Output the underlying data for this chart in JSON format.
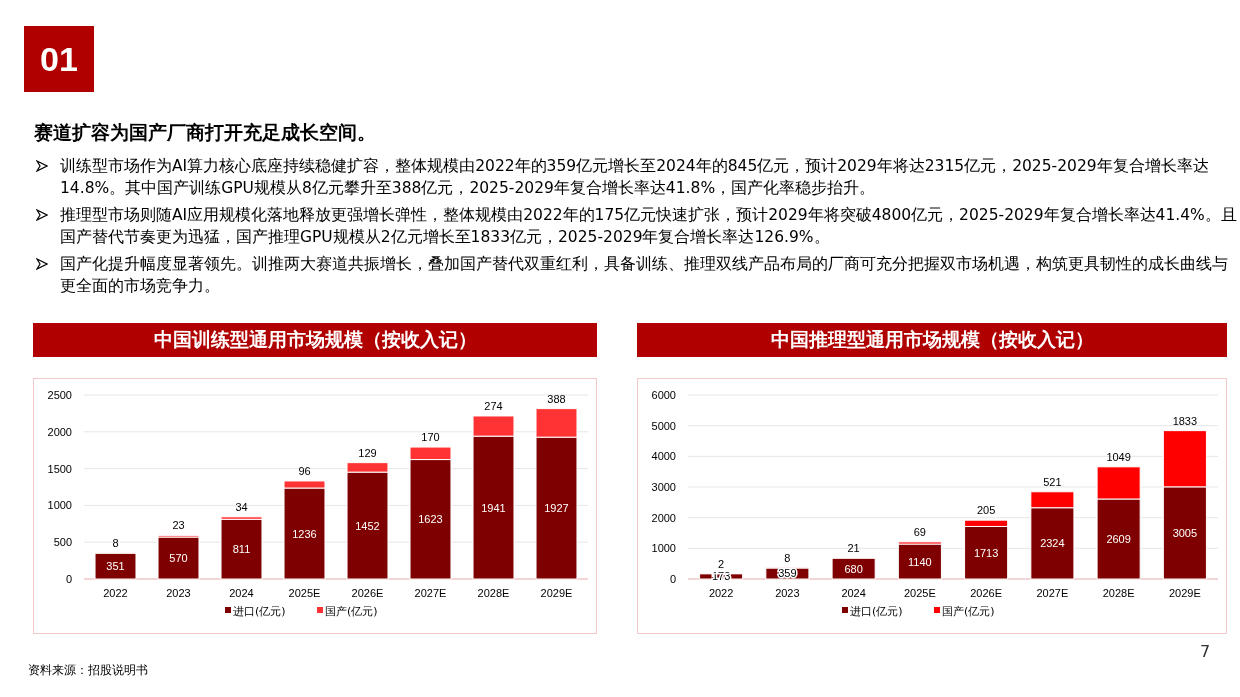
{
  "chart_data": [
    {
      "type": "other",
      "title": "赛道扩容为国产厂商打开充足成长空间。",
      "annotations": [
        "01",
        "训练型市场作为AI算力核心底座持续稳健扩容，整体规模由2022年的359亿元增长至2024年的845亿元，预计2029年将达2315亿元，2025-2029年复合增长率达14.8%。其中国产训练GPU规模从8亿元攀升至388亿元，2025-2029年复合增长率达41.8%，国产化率稳步抬升。",
        "推理型市场则随AI应用规模化落地释放更强增长弹性，整体规模由2022年的175亿元快速扩张，预计2029年将突破4800亿元，2025-2029年复合增长率达41.4%。且国产替代节奏更为迅猛，国产推理GPU规模从2亿元增长至1833亿元，2025-2029年复合增长率达126.9%。",
        "国产化提升幅度显著领先。训推两大赛道共振增长，叠加国产替代双重红利，具备训练、推理双线产品布局的厂商可充分把握双市场机遇，构筑更具韧性的成长曲线与更全面的市场竞争力。",
        "资料来源：招股说明书",
        "7"
      ]
    },
    {
      "type": "bar",
      "title": "中国训练型通用市场规模（按收入记）",
      "stacked": true,
      "data_labels": true,
      "grid": "y",
      "legend": "bottom",
      "categories": [
        "2022",
        "2023",
        "2024",
        "2025E",
        "2026E",
        "2027E",
        "2028E",
        "2029E"
      ],
      "ylim": [
        0,
        2500
      ],
      "yticks": [
        0,
        500,
        1000,
        1500,
        2000,
        2500
      ],
      "series": [
        {
          "name": "进口(亿元)",
          "color": "#7f0000",
          "values": [
            351,
            570,
            811,
            1236,
            1452,
            1623,
            1941,
            1927
          ]
        },
        {
          "name": "国产(亿元)",
          "color": "#ff3333",
          "values": [
            8,
            23,
            34,
            96,
            129,
            170,
            274,
            388
          ]
        }
      ]
    },
    {
      "type": "bar",
      "title": "中国推理型通用市场规模（按收入记）",
      "stacked": true,
      "data_labels": true,
      "grid": "y",
      "legend": "bottom",
      "categories": [
        "2022",
        "2023",
        "2024",
        "2025E",
        "2026E",
        "2027E",
        "2028E",
        "2029E"
      ],
      "ylim": [
        0,
        6000
      ],
      "yticks": [
        0,
        1000,
        2000,
        3000,
        4000,
        5000,
        6000
      ],
      "series": [
        {
          "name": "进口(亿元)",
          "color": "#7f0000",
          "values": [
            173,
            359,
            680,
            1140,
            1713,
            2324,
            2609,
            3005
          ]
        },
        {
          "name": "国产(亿元)",
          "color": "#ff0000",
          "values": [
            2,
            8,
            21,
            69,
            205,
            521,
            1049,
            1833
          ]
        }
      ]
    }
  ]
}
